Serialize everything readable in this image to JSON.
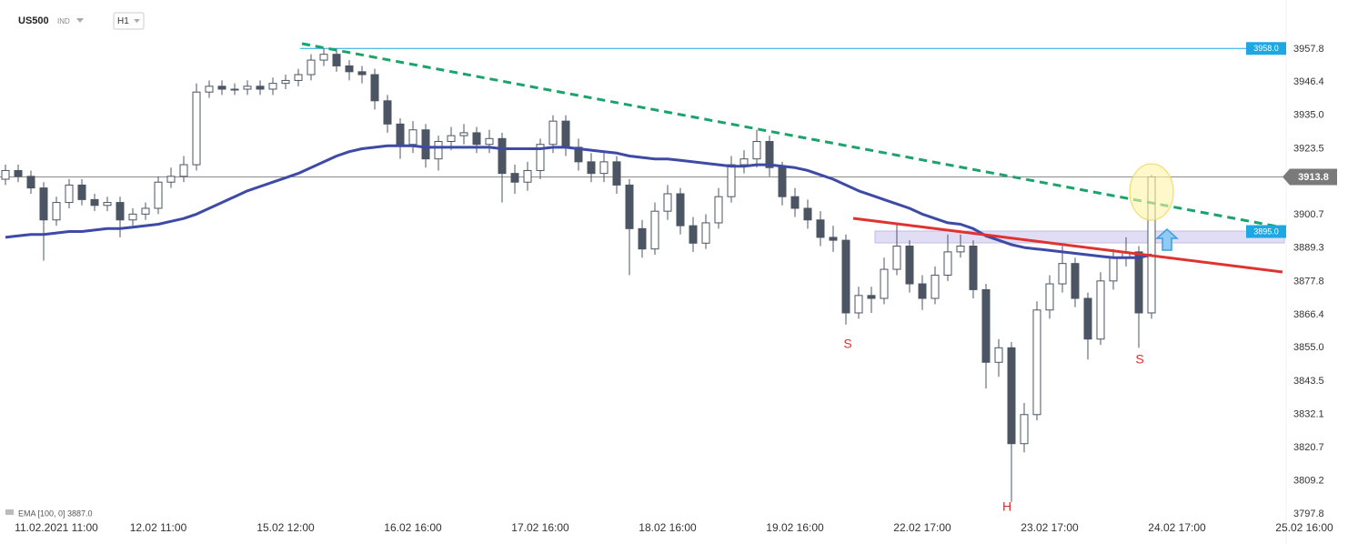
{
  "chart_data": {
    "type": "candlestick",
    "symbol": "US500",
    "market": "IND",
    "timeframe": "H1",
    "categories": [
      null,
      null,
      null,
      null,
      "11.02.2021  11:00",
      null,
      null,
      null,
      null,
      null,
      null,
      null,
      "12.02  11:00",
      null,
      null,
      null,
      null,
      null,
      null,
      null,
      null,
      null,
      "15.02  12:00",
      null,
      null,
      null,
      null,
      null,
      null,
      null,
      null,
      null,
      "16.02  16:00",
      null,
      null,
      null,
      null,
      null,
      null,
      null,
      null,
      null,
      "17.02  16:00",
      null,
      null,
      null,
      null,
      null,
      null,
      null,
      null,
      null,
      "18.02  16:00",
      null,
      null,
      null,
      null,
      null,
      null,
      null,
      null,
      null,
      "19.02  16:00",
      null,
      null,
      null,
      null,
      null,
      null,
      null,
      null,
      null,
      "22.02  17:00",
      null,
      null,
      null,
      null,
      null,
      null,
      null,
      null,
      null,
      "23.02  17:00",
      null,
      null,
      null,
      null,
      null,
      null,
      null,
      null,
      null,
      "24.02  17:00",
      null,
      null,
      null,
      null,
      null,
      null,
      null,
      null,
      null,
      "25.02  16:00"
    ],
    "open": [
      3913,
      3916,
      3914,
      3910,
      3899,
      3905,
      3911,
      3906,
      3904,
      3905,
      3899,
      3901,
      3903,
      3912,
      3914,
      3918,
      3943,
      3945,
      3944,
      3944,
      3945,
      3944,
      3946,
      3947,
      3949,
      3954,
      3956,
      3952,
      3950,
      3949,
      3940,
      3932,
      3925,
      3930,
      3920,
      3926,
      3928,
      3929,
      3925,
      3927,
      3915,
      3912,
      3916,
      3925,
      3933,
      3924,
      3919,
      3915,
      3919,
      3911,
      3896,
      3889,
      3902,
      3908,
      3897,
      3891,
      3898,
      3907,
      3918,
      3920,
      3926,
      3917,
      3907,
      3903,
      3899,
      3893,
      3892,
      3867,
      3873,
      3872,
      3882,
      3890,
      3877,
      3872,
      3880,
      3888,
      3890,
      3875,
      3850,
      3855,
      3822,
      3832,
      3868,
      3877,
      3884,
      3872,
      3858,
      3878,
      3886,
      3888,
      3867,
      null,
      null,
      null,
      null,
      null,
      null,
      null,
      null,
      null,
      null,
      null,
      null
    ],
    "high": [
      3918,
      3918,
      3916,
      3912,
      3907,
      3913,
      3913,
      3908,
      3907,
      3907,
      3903,
      3905,
      3914,
      3917,
      3921,
      3946,
      3947,
      3947,
      3946,
      3947,
      3947,
      3948,
      3949,
      3951,
      3956,
      3958,
      3958,
      3954,
      3952,
      3951,
      3942,
      3934,
      3933,
      3932,
      3928,
      3931,
      3932,
      3931,
      3930,
      3929,
      3918,
      3919,
      3927,
      3935,
      3935,
      3927,
      3922,
      3922,
      3921,
      3913,
      3899,
      3905,
      3911,
      3910,
      3900,
      3901,
      3910,
      3921,
      3923,
      3930,
      3928,
      3919,
      3910,
      3906,
      3902,
      3897,
      3894,
      3876,
      3876,
      3886,
      3898,
      3892,
      3880,
      3883,
      3894,
      3894,
      3892,
      3877,
      3858,
      3857,
      3836,
      3871,
      3880,
      3890,
      3886,
      3874,
      3881,
      3889,
      3893,
      3890,
      3914.5,
      null,
      null,
      null,
      null,
      null,
      null,
      null,
      null,
      null,
      null,
      null,
      null
    ],
    "low": [
      3911,
      3912,
      3908,
      3885,
      3897,
      3903,
      3904,
      3902,
      3902,
      3893,
      3897,
      3899,
      3901,
      3910,
      3912,
      3916,
      3941,
      3942,
      3942,
      3942,
      3942,
      3942,
      3944,
      3945,
      3947,
      3952,
      3950,
      3947,
      3946,
      3937,
      3929,
      3920,
      3922,
      3917,
      3916,
      3923,
      3925,
      3922,
      3922,
      3905,
      3908,
      3909,
      3913,
      3922,
      3921,
      3916,
      3912,
      3912,
      3908,
      3880,
      3886,
      3887,
      3899,
      3894,
      3888,
      3889,
      3896,
      3905,
      3915,
      3917,
      3914,
      3904,
      3900,
      3896,
      3890,
      3888,
      3863,
      3865,
      3867,
      3870,
      3880,
      3874,
      3868,
      3870,
      3878,
      3886,
      3872,
      3841,
      3845,
      3802,
      3819,
      3830,
      3865,
      3874,
      3869,
      3851,
      3856,
      3875,
      3883,
      3855,
      3865,
      null,
      null,
      null,
      null,
      null,
      null,
      null,
      null,
      null,
      null,
      null,
      null
    ],
    "close": [
      3916,
      3914,
      3910,
      3899,
      3905,
      3911,
      3906,
      3904,
      3905,
      3899,
      3901,
      3903,
      3912,
      3914,
      3918,
      3943,
      3945,
      3944,
      3944,
      3945,
      3944,
      3946,
      3947,
      3949,
      3954,
      3956,
      3952,
      3950,
      3949,
      3940,
      3932,
      3925,
      3930,
      3920,
      3926,
      3928,
      3929,
      3925,
      3927,
      3915,
      3912,
      3916,
      3925,
      3933,
      3924,
      3919,
      3915,
      3919,
      3911,
      3896,
      3889,
      3902,
      3908,
      3897,
      3891,
      3898,
      3907,
      3918,
      3920,
      3926,
      3917,
      3907,
      3903,
      3899,
      3893,
      3892,
      3867,
      3873,
      3872,
      3882,
      3890,
      3877,
      3872,
      3880,
      3888,
      3890,
      3875,
      3850,
      3855,
      3822,
      3832,
      3868,
      3877,
      3884,
      3872,
      3858,
      3878,
      3886,
      3888,
      3867,
      3913.8,
      null,
      null,
      null,
      null,
      null,
      null,
      null,
      null,
      null,
      null,
      null,
      null
    ],
    "up_color": "#ffffff",
    "down_color": "#4b5563",
    "wick_color": "#4b5563",
    "ema": {
      "label": "EMA [100, 0] 3887.0",
      "color": "#3d4aa6",
      "values": [
        3893,
        3893.5,
        3894,
        3894,
        3894.5,
        3895,
        3895,
        3895.5,
        3896,
        3896,
        3896.5,
        3897,
        3897.5,
        3898.5,
        3899.5,
        3901,
        3903,
        3905,
        3907,
        3909,
        3910.5,
        3912,
        3913.5,
        3915,
        3917,
        3919,
        3921,
        3922.5,
        3923.5,
        3924,
        3924.5,
        3924.5,
        3924.5,
        3924,
        3924,
        3924,
        3924,
        3924,
        3924,
        3923.5,
        3923.5,
        3923.5,
        3923.5,
        3924,
        3924,
        3923.5,
        3923,
        3922.5,
        3922,
        3921,
        3920.5,
        3920,
        3920,
        3919.5,
        3919,
        3918.5,
        3918,
        3917.5,
        3917.5,
        3918,
        3918,
        3917.5,
        3917,
        3916,
        3914.5,
        3913,
        3911,
        3909,
        3907.5,
        3906,
        3904.5,
        3903,
        3901,
        3899.5,
        3898,
        3897.5,
        3896,
        3893.5,
        3892,
        3890.5,
        3889.5,
        3889,
        3888.5,
        3888,
        3887.5,
        3887,
        3886.5,
        3886,
        3886,
        3886,
        3887,
        null,
        null,
        null,
        null,
        null,
        null,
        null,
        null,
        null,
        null,
        null,
        null
      ]
    },
    "ylim": [
      3795.3,
      3970.3
    ],
    "yticks": [
      3957.8,
      3946.4,
      {
        "value": 3935,
        "label": "3935.0"
      },
      3923.5,
      3900.7,
      3889.3,
      3877.8,
      3866.4,
      {
        "value": 3855,
        "label": "3855.0"
      },
      3843.5,
      3832.1,
      3820.7,
      3809.2,
      3797.8
    ],
    "levels": [
      {
        "value": 3958,
        "label": "3958.0",
        "color": "#1ea7e1"
      },
      {
        "value": 3895,
        "label": "3895.0",
        "color": "#1ea7e1"
      }
    ],
    "last_price": 3913.8,
    "annotations": [
      "S",
      "H",
      "S"
    ]
  }
}
